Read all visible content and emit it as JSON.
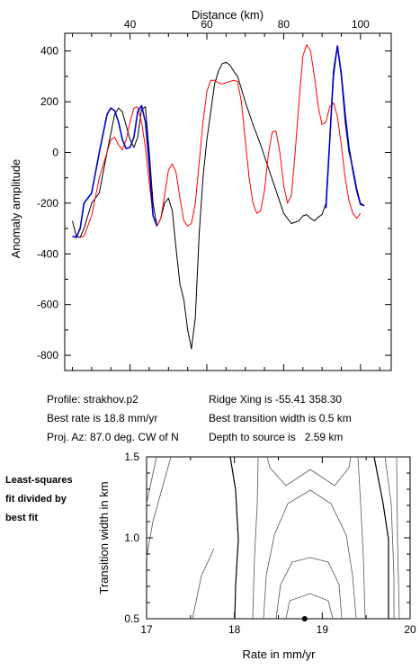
{
  "info": {
    "profile": "Profile: strakhov.p2",
    "best_rate": "Best rate is 18.8 mm/yr",
    "proj_az": "Proj. Az: 87.0 deg. CW of N",
    "ridge_xing": "Ridge Xing is -55.41 358.30",
    "best_width": "Best transition width is 0.5 km",
    "depth": "Depth to source is   2.59 km"
  },
  "side_note": {
    "line1": "Least-squares",
    "line2": "fit divided by",
    "line3": "best fit"
  },
  "colors": {
    "observed_black": "#000000",
    "model_red": "#ff0000",
    "fit_blue": "#0000cc",
    "contour": "#555555"
  },
  "chart_data": [
    {
      "type": "line",
      "xlabel": "Distance (km)",
      "ylabel": "Anomaly amplitude",
      "xlim": [
        23,
        108
      ],
      "ylim": [
        -860,
        470
      ],
      "xticks": [
        40,
        60,
        80,
        100
      ],
      "yticks": [
        400,
        200,
        0,
        -200,
        -400,
        -600,
        -800
      ],
      "series": [
        {
          "color": "#000000",
          "points": [
            [
              25,
              -270
            ],
            [
              26,
              -330
            ],
            [
              27,
              -335
            ],
            [
              28,
              -300
            ],
            [
              30,
              -200
            ],
            [
              32,
              -160
            ],
            [
              34,
              0
            ],
            [
              36,
              150
            ],
            [
              37,
              175
            ],
            [
              38,
              160
            ],
            [
              40,
              50
            ],
            [
              41,
              20
            ],
            [
              42,
              60
            ],
            [
              43,
              170
            ],
            [
              44,
              180
            ],
            [
              45,
              0
            ],
            [
              46,
              -200
            ],
            [
              47,
              -290
            ],
            [
              48,
              -260
            ],
            [
              49,
              -200
            ],
            [
              50,
              -180
            ],
            [
              51,
              -230
            ],
            [
              52,
              -380
            ],
            [
              53,
              -520
            ],
            [
              54,
              -580
            ],
            [
              55,
              -700
            ],
            [
              56,
              -775
            ],
            [
              57,
              -650
            ],
            [
              58,
              -320
            ],
            [
              59,
              -100
            ],
            [
              60,
              50
            ],
            [
              61,
              160
            ],
            [
              62,
              270
            ],
            [
              63,
              320
            ],
            [
              64,
              350
            ],
            [
              65,
              355
            ],
            [
              66,
              345
            ],
            [
              67,
              320
            ],
            [
              68,
              300
            ],
            [
              70,
              200
            ],
            [
              72,
              110
            ],
            [
              74,
              30
            ],
            [
              76,
              -60
            ],
            [
              78,
              -150
            ],
            [
              80,
              -240
            ],
            [
              82,
              -280
            ],
            [
              84,
              -270
            ],
            [
              85,
              -250
            ],
            [
              86,
              -245
            ],
            [
              87,
              -260
            ],
            [
              88,
              -270
            ],
            [
              89,
              -255
            ],
            [
              90,
              -245
            ],
            [
              91,
              -200
            ],
            [
              92,
              50
            ],
            [
              93,
              300
            ],
            [
              94,
              420
            ],
            [
              95,
              300
            ],
            [
              96,
              120
            ],
            [
              97,
              0
            ],
            [
              98,
              -60
            ],
            [
              99,
              -140
            ],
            [
              100,
              -200
            ],
            [
              101,
              -210
            ]
          ]
        },
        {
          "color": "#ff0000",
          "points": [
            [
              27,
              -335
            ],
            [
              28,
              -330
            ],
            [
              30,
              -250
            ],
            [
              32,
              -100
            ],
            [
              34,
              0
            ],
            [
              35,
              50
            ],
            [
              36,
              60
            ],
            [
              37,
              30
            ],
            [
              38,
              10
            ],
            [
              39,
              50
            ],
            [
              40,
              120
            ],
            [
              41,
              175
            ],
            [
              42,
              180
            ],
            [
              43,
              120
            ],
            [
              44,
              20
            ],
            [
              45,
              -120
            ],
            [
              46,
              -250
            ],
            [
              47,
              -290
            ],
            [
              48,
              -260
            ],
            [
              49,
              -170
            ],
            [
              50,
              -70
            ],
            [
              51,
              -45
            ],
            [
              52,
              -80
            ],
            [
              53,
              -180
            ],
            [
              54,
              -270
            ],
            [
              55,
              -290
            ],
            [
              56,
              -280
            ],
            [
              57,
              -200
            ],
            [
              58,
              -40
            ],
            [
              59,
              120
            ],
            [
              60,
              240
            ],
            [
              61,
              285
            ],
            [
              62,
              285
            ],
            [
              63,
              275
            ],
            [
              64,
              270
            ],
            [
              65,
              275
            ],
            [
              66,
              280
            ],
            [
              67,
              285
            ],
            [
              68,
              280
            ],
            [
              69,
              200
            ],
            [
              70,
              50
            ],
            [
              71,
              -100
            ],
            [
              72,
              -200
            ],
            [
              73,
              -240
            ],
            [
              74,
              -230
            ],
            [
              75,
              -150
            ],
            [
              76,
              -10
            ],
            [
              77,
              80
            ],
            [
              78,
              85
            ],
            [
              79,
              0
            ],
            [
              80,
              -130
            ],
            [
              81,
              -200
            ],
            [
              82,
              -170
            ],
            [
              83,
              0
            ],
            [
              84,
              200
            ],
            [
              85,
              380
            ],
            [
              86,
              425
            ],
            [
              87,
              400
            ],
            [
              88,
              300
            ],
            [
              89,
              180
            ],
            [
              90,
              110
            ],
            [
              91,
              120
            ],
            [
              92,
              180
            ],
            [
              93,
              195
            ],
            [
              94,
              140
            ],
            [
              95,
              30
            ],
            [
              96,
              -100
            ],
            [
              97,
              -190
            ],
            [
              98,
              -240
            ],
            [
              99,
              -260
            ],
            [
              100,
              -240
            ]
          ]
        },
        {
          "color": "#0000cc",
          "points": [
            [
              25,
              -330
            ],
            [
              26,
              -335
            ],
            [
              27,
              -300
            ],
            [
              28,
              -200
            ],
            [
              30,
              -160
            ],
            [
              32,
              0
            ],
            [
              34,
              150
            ],
            [
              35,
              175
            ],
            [
              36,
              165
            ],
            [
              37,
              120
            ],
            [
              38,
              50
            ],
            [
              39,
              15
            ],
            [
              40,
              20
            ],
            [
              41,
              60
            ],
            [
              42,
              160
            ],
            [
              43,
              185
            ],
            [
              44,
              120
            ],
            [
              45,
              -50
            ],
            [
              46,
              -250
            ],
            [
              47,
              -290
            ],
            [
              91,
              -220
            ],
            [
              92,
              50
            ],
            [
              93,
              320
            ],
            [
              94,
              420
            ],
            [
              95,
              310
            ],
            [
              96,
              150
            ],
            [
              97,
              20
            ],
            [
              98,
              -70
            ],
            [
              99,
              -150
            ],
            [
              100,
              -205
            ],
            [
              101,
              -210
            ]
          ]
        }
      ]
    },
    {
      "type": "contour",
      "xlabel": "Rate in mm/yr",
      "ylabel": "Transition width in km",
      "xlim": [
        17,
        20
      ],
      "ylim": [
        0.5,
        1.5
      ],
      "xticks": [
        "17",
        "18",
        "19",
        "20"
      ],
      "yticks": [
        "0.5",
        "1.0",
        "1.5"
      ],
      "best_fit": {
        "rate": 18.8,
        "width": 0.5
      }
    }
  ]
}
